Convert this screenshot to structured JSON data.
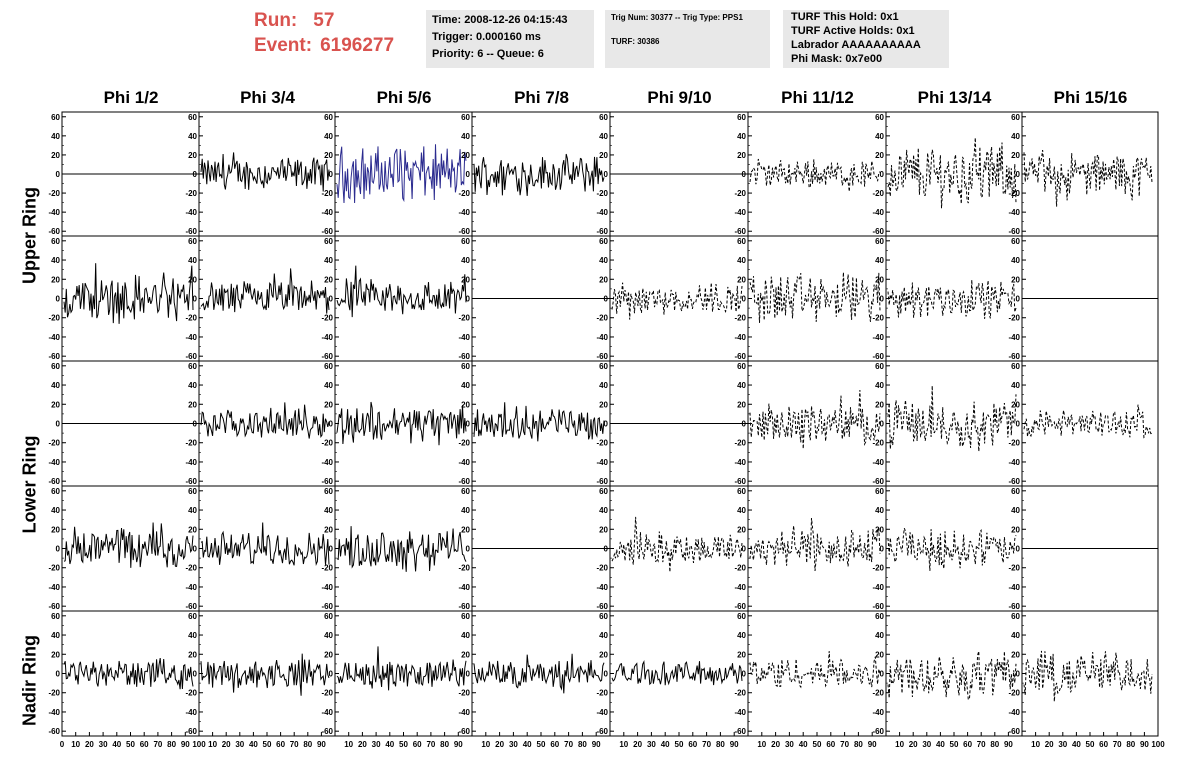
{
  "run": {
    "label": "Run:",
    "value": "57"
  },
  "event": {
    "label": "Event:",
    "value": "6196277"
  },
  "time_panel": {
    "time": "Time: 2008-12-26 04:15:43",
    "trigger": "Trigger: 0.000160 ms",
    "priority": "Priority: 6 -- Queue: 6"
  },
  "trig_panel": {
    "trig": "Trig Num: 30377 -- Trig Type: PPS1",
    "turf": "TURF: 30386"
  },
  "turf_panel": {
    "this_hold": "TURF This Hold: 0x1",
    "active_holds": "TURF Active Holds: 0x1",
    "labrador": "Labrador AAAAAAAAAA",
    "phi_mask": "Phi Mask: 0x7e00"
  },
  "phi_headers": [
    "Phi 1/2",
    "Phi 3/4",
    "Phi 5/6",
    "Phi 7/8",
    "Phi 9/10",
    "Phi 11/12",
    "Phi 13/14",
    "Phi 15/16"
  ],
  "ring_labels": [
    "Upper Ring",
    "Lower Ring",
    "Nadir Ring"
  ],
  "axes": {
    "y_ticks": [
      60,
      40,
      20,
      0,
      -20,
      -40,
      -60
    ],
    "x_ticks_first": [
      "0",
      "10",
      "20",
      "30",
      "40",
      "50",
      "60",
      "70",
      "80",
      "90",
      "100"
    ],
    "x_ticks_mid": [
      "10",
      "20",
      "30",
      "40",
      "50",
      "60",
      "70",
      "80",
      "90",
      "100"
    ],
    "ylim": [
      -65,
      65
    ],
    "xlim": [
      0,
      100
    ]
  },
  "colors": {
    "trace": "#000000",
    "highlight_trace": "#2b2b8f",
    "title": "#d9534f",
    "panel_bg": "#e8e8e8"
  },
  "chart_data": {
    "type": "line",
    "title": "",
    "xlabel": "",
    "ylabel": "",
    "xlim": [
      0,
      100
    ],
    "ylim": [
      -65,
      65
    ],
    "rows": 5,
    "cols": 8,
    "cells": [
      {
        "row": 0,
        "col": 0,
        "style": "flat",
        "amp": 0
      },
      {
        "row": 0,
        "col": 1,
        "style": "solid",
        "amp": 14
      },
      {
        "row": 0,
        "col": 2,
        "style": "blue",
        "amp": 24
      },
      {
        "row": 0,
        "col": 3,
        "style": "solid",
        "amp": 16
      },
      {
        "row": 0,
        "col": 4,
        "style": "flat",
        "amp": 0
      },
      {
        "row": 0,
        "col": 5,
        "style": "dashed",
        "amp": 12
      },
      {
        "row": 0,
        "col": 6,
        "style": "dashed",
        "amp": 26
      },
      {
        "row": 0,
        "col": 7,
        "style": "dashed",
        "amp": 18
      },
      {
        "row": 1,
        "col": 0,
        "style": "solid",
        "amp": 20
      },
      {
        "row": 1,
        "col": 1,
        "style": "solid",
        "amp": 15
      },
      {
        "row": 1,
        "col": 2,
        "style": "solid",
        "amp": 16
      },
      {
        "row": 1,
        "col": 3,
        "style": "flat",
        "amp": 0
      },
      {
        "row": 1,
        "col": 4,
        "style": "dashed",
        "amp": 14
      },
      {
        "row": 1,
        "col": 5,
        "style": "dashed",
        "amp": 22
      },
      {
        "row": 1,
        "col": 6,
        "style": "dashed",
        "amp": 16
      },
      {
        "row": 1,
        "col": 7,
        "style": "flat",
        "amp": 0
      },
      {
        "row": 2,
        "col": 0,
        "style": "flat",
        "amp": 0
      },
      {
        "row": 2,
        "col": 1,
        "style": "solid",
        "amp": 12
      },
      {
        "row": 2,
        "col": 2,
        "style": "solid",
        "amp": 16
      },
      {
        "row": 2,
        "col": 3,
        "style": "solid",
        "amp": 14
      },
      {
        "row": 2,
        "col": 4,
        "style": "flat",
        "amp": 0
      },
      {
        "row": 2,
        "col": 5,
        "style": "dashed",
        "amp": 16
      },
      {
        "row": 2,
        "col": 6,
        "style": "dashed",
        "amp": 20
      },
      {
        "row": 2,
        "col": 7,
        "style": "dashed",
        "amp": 12
      },
      {
        "row": 3,
        "col": 0,
        "style": "solid",
        "amp": 18
      },
      {
        "row": 3,
        "col": 1,
        "style": "solid",
        "amp": 14
      },
      {
        "row": 3,
        "col": 2,
        "style": "solid",
        "amp": 18
      },
      {
        "row": 3,
        "col": 3,
        "style": "flat",
        "amp": 0
      },
      {
        "row": 3,
        "col": 4,
        "style": "dashed",
        "amp": 14
      },
      {
        "row": 3,
        "col": 5,
        "style": "dashed",
        "amp": 18
      },
      {
        "row": 3,
        "col": 6,
        "style": "dashed",
        "amp": 16
      },
      {
        "row": 3,
        "col": 7,
        "style": "flat",
        "amp": 0
      },
      {
        "row": 4,
        "col": 0,
        "style": "solid",
        "amp": 12
      },
      {
        "row": 4,
        "col": 1,
        "style": "solid",
        "amp": 12
      },
      {
        "row": 4,
        "col": 2,
        "style": "solid",
        "amp": 12
      },
      {
        "row": 4,
        "col": 3,
        "style": "solid",
        "amp": 12
      },
      {
        "row": 4,
        "col": 4,
        "style": "solid",
        "amp": 10
      },
      {
        "row": 4,
        "col": 5,
        "style": "dashed",
        "amp": 14
      },
      {
        "row": 4,
        "col": 6,
        "style": "dashed",
        "amp": 20
      },
      {
        "row": 4,
        "col": 7,
        "style": "dashed",
        "amp": 20
      }
    ]
  }
}
